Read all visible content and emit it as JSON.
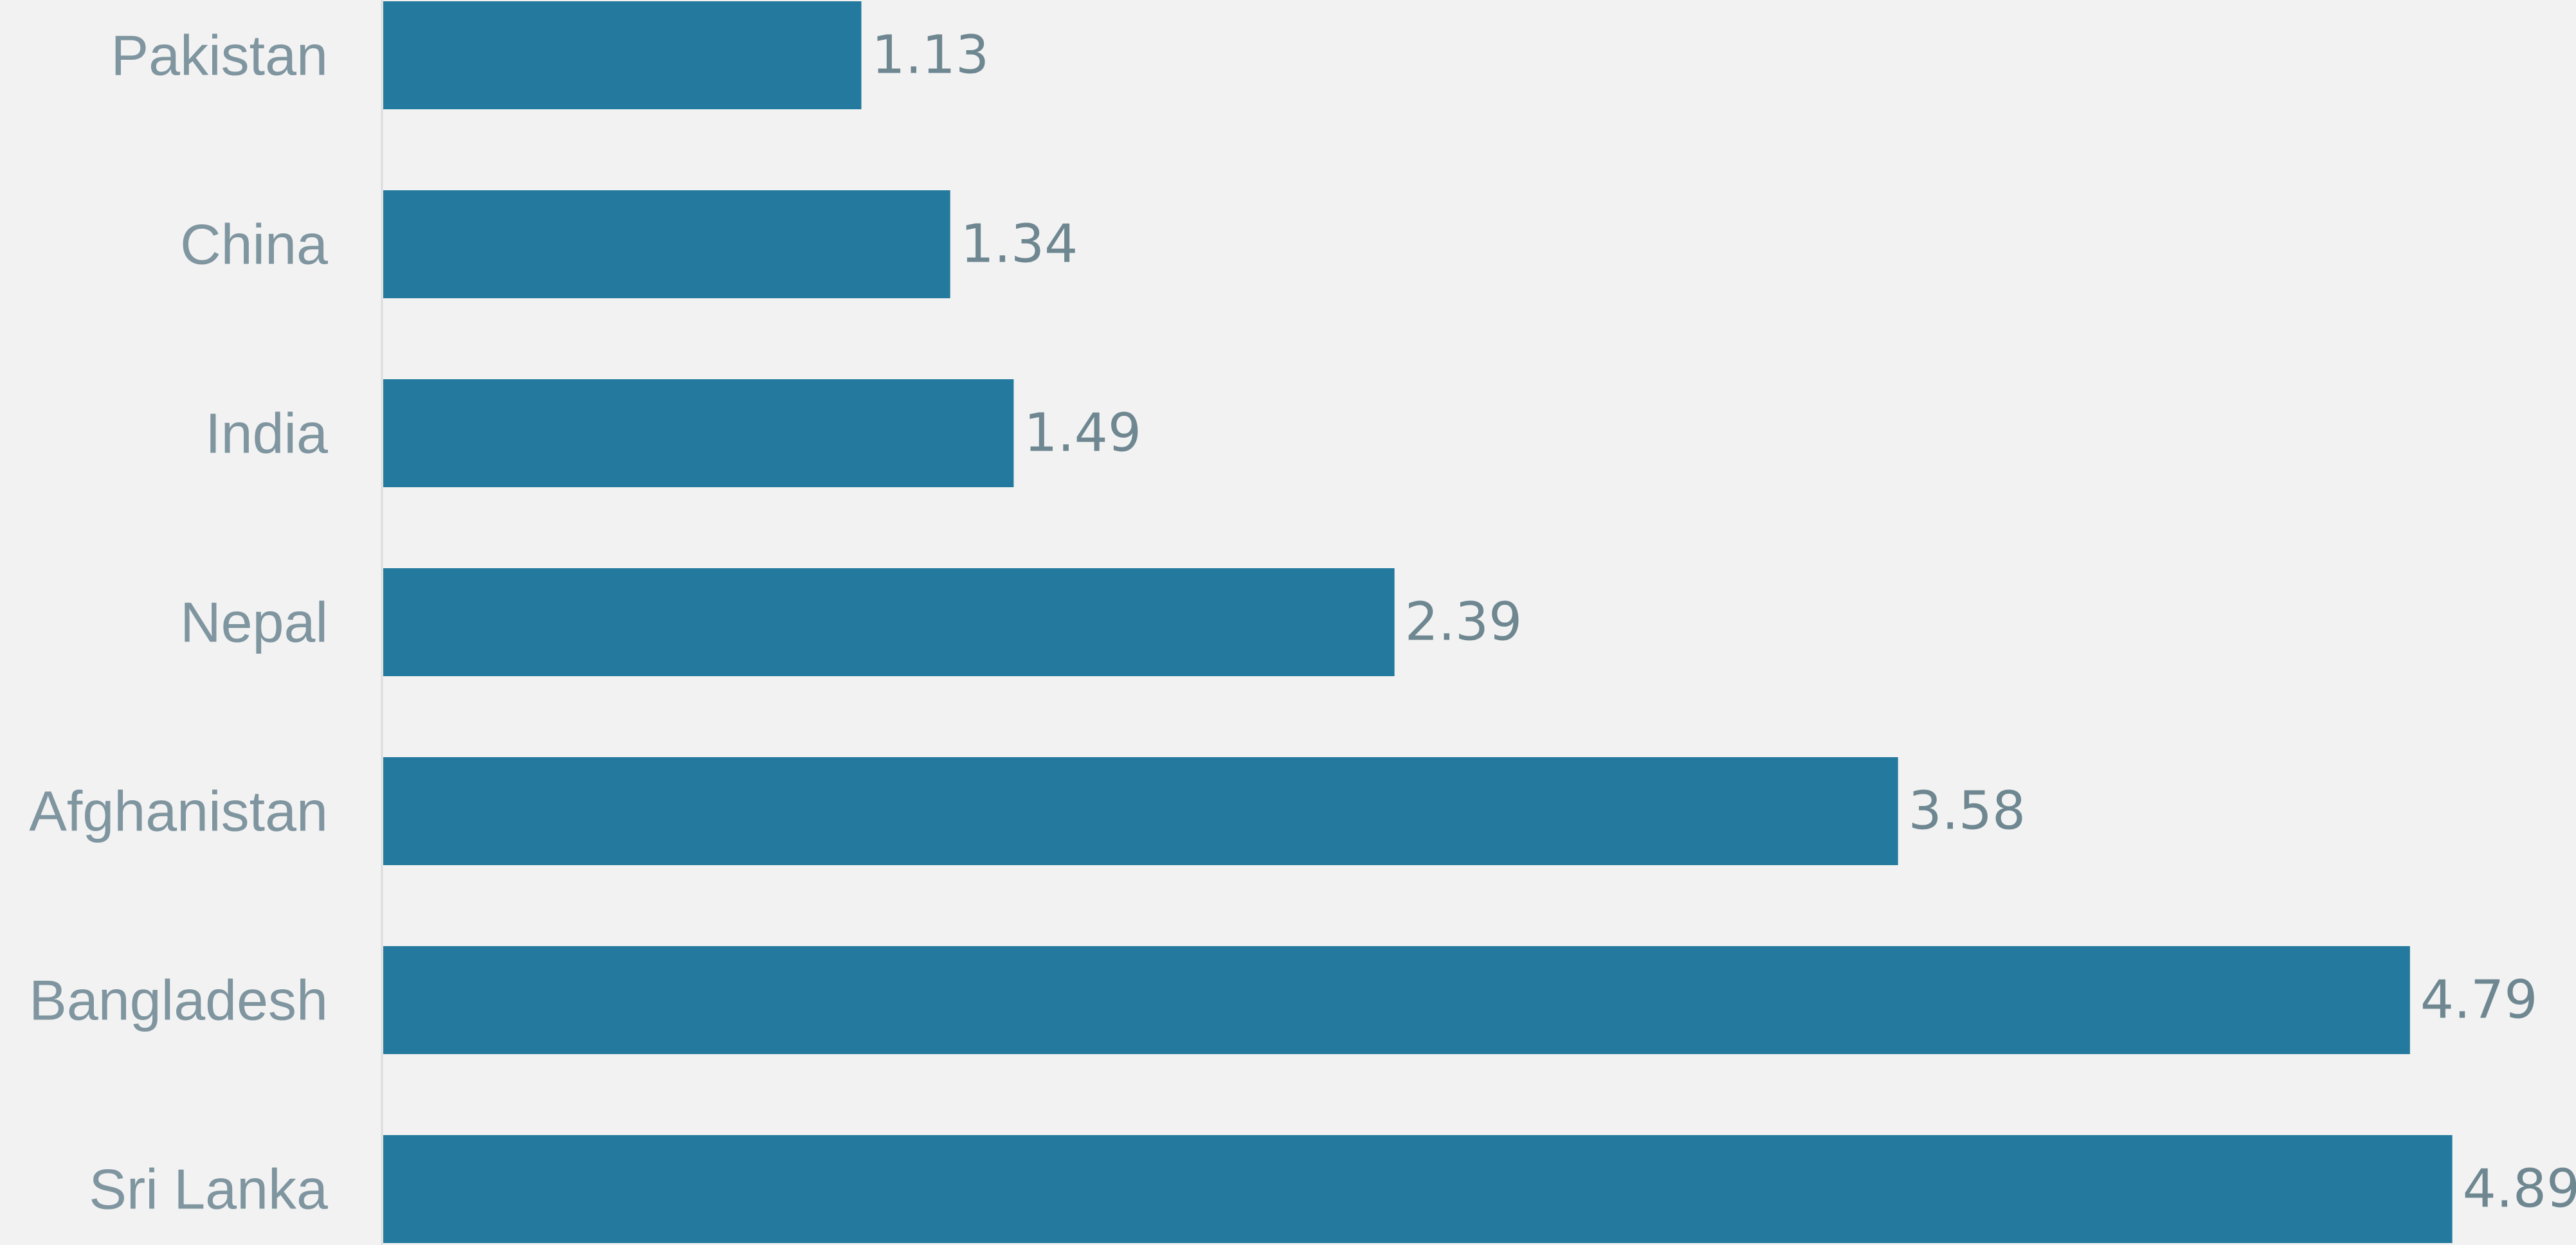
{
  "colors": {
    "background": "#f2f2f2",
    "bar": "#237a9e",
    "category_text": "#7f959f",
    "value_text": "#6e8791",
    "axis_line": "#dcdcdc"
  },
  "chart_data": {
    "type": "bar",
    "orientation": "horizontal",
    "title": "",
    "xlabel": "",
    "ylabel": "",
    "categories": [
      "Pakistan",
      "China",
      "India",
      "Nepal",
      "Afghanistan",
      "Bangladesh",
      "Sri Lanka"
    ],
    "values": [
      1.13,
      1.34,
      1.49,
      2.39,
      3.58,
      4.79,
      4.89
    ],
    "value_labels": [
      "1.13",
      "1.34",
      "1.49",
      "2.39",
      "3.58",
      "4.79",
      "4.89"
    ],
    "xlim": [
      0,
      5.0
    ],
    "grid": false,
    "legend": "none",
    "data_labels": true
  }
}
